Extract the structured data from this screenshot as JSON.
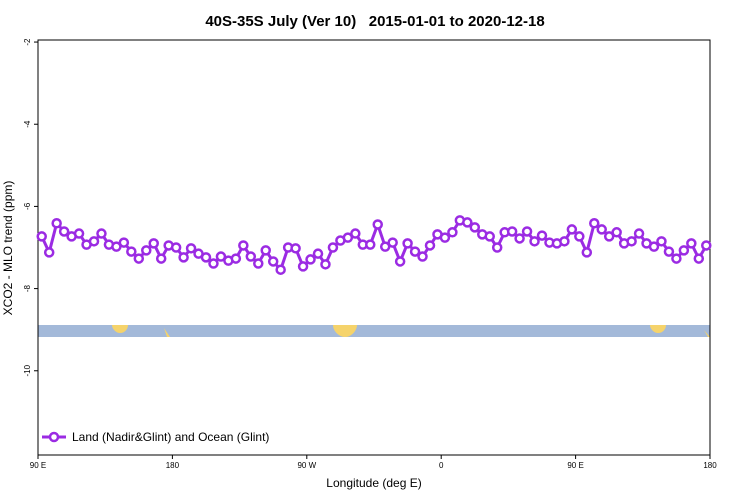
{
  "chart_data": {
    "type": "line",
    "title": "40S-35S July (Ver 10)   2015-01-01 to 2020-12-18",
    "x_label": "Longitude (deg E)",
    "y_label": "XCO2 - MLO trend (ppm)",
    "xlim": [
      90,
      540
    ],
    "ylim": [
      -12.05,
      -1.95
    ],
    "xticks": [
      {
        "value": 90,
        "label": "90 E"
      },
      180,
      {
        "value": 270,
        "label": "90 W"
      },
      {
        "value": 360,
        "label": "0"
      },
      {
        "value": 450,
        "label": "90 E"
      },
      {
        "value": 540,
        "label": "180"
      }
    ],
    "yticks": [
      -2,
      -4,
      -6,
      -8,
      -10
    ],
    "legend": "bottom-left",
    "x": [
      92.5,
      97.5,
      102.5,
      107.5,
      112.5,
      117.5,
      122.5,
      127.5,
      132.5,
      137.5,
      142.5,
      147.5,
      152.5,
      157.5,
      162.5,
      167.5,
      172.5,
      177.5,
      182.5,
      187.5,
      192.5,
      197.5,
      202.5,
      207.5,
      212.5,
      217.5,
      222.5,
      227.5,
      232.5,
      237.5,
      242.5,
      247.5,
      252.5,
      257.5,
      262.5,
      267.5,
      272.5,
      277.5,
      282.5,
      287.5,
      292.5,
      297.5,
      302.5,
      307.5,
      312.5,
      317.5,
      322.5,
      327.5,
      332.5,
      337.5,
      342.5,
      347.5,
      352.5,
      357.5,
      362.5,
      367.5,
      372.5,
      377.5,
      382.5,
      387.5,
      392.5,
      397.5,
      402.5,
      407.5,
      412.5,
      417.5,
      422.5,
      427.5,
      432.5,
      437.5,
      442.5,
      447.5,
      452.5,
      457.5,
      462.5,
      467.5,
      472.5,
      477.5,
      482.5,
      487.5,
      492.5,
      497.5,
      502.5,
      507.5,
      512.5,
      517.5,
      522.5,
      527.5,
      532.5,
      537.5
    ],
    "series": [
      {
        "name": "Land (Nadir&Glint) and Ocean (Glint)",
        "color": "#9b2be3",
        "values": [
          -6.73,
          -7.12,
          -6.41,
          -6.61,
          -6.73,
          -6.66,
          -6.93,
          -6.85,
          -6.66,
          -6.93,
          -6.98,
          -6.88,
          -7.1,
          -7.27,
          -7.07,
          -6.9,
          -7.27,
          -6.95,
          -7.0,
          -7.24,
          -7.02,
          -7.15,
          -7.24,
          -7.39,
          -7.22,
          -7.32,
          -7.27,
          -6.95,
          -7.22,
          -7.39,
          -7.07,
          -7.34,
          -7.54,
          -7.0,
          -7.02,
          -7.46,
          -7.29,
          -7.15,
          -7.41,
          -7.0,
          -6.83,
          -6.76,
          -6.66,
          -6.93,
          -6.93,
          -6.44,
          -6.98,
          -6.88,
          -7.34,
          -6.9,
          -7.1,
          -7.22,
          -6.95,
          -6.68,
          -6.76,
          -6.63,
          -6.34,
          -6.39,
          -6.51,
          -6.68,
          -6.73,
          -7.0,
          -6.63,
          -6.61,
          -6.78,
          -6.61,
          -6.85,
          -6.71,
          -6.88,
          -6.9,
          -6.85,
          -6.56,
          -6.73,
          -7.12,
          -6.41,
          -6.56,
          -6.73,
          -6.63,
          -6.9,
          -6.85,
          -6.66,
          -6.9,
          -6.98,
          -6.85,
          -7.1,
          -7.27,
          -7.07,
          -6.9,
          -7.27,
          -6.95
        ]
      }
    ]
  }
}
